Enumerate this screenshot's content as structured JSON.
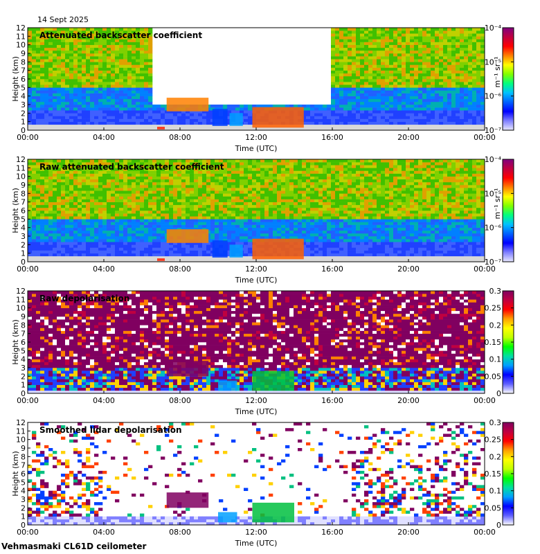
{
  "date": "14 Sept 2025",
  "footer": "Vehmasmaki CL61D ceilometer",
  "chart_data": [
    {
      "type": "heatmap",
      "title": "Attenuated backscatter coefficient",
      "xlabel": "Time (UTC)",
      "ylabel": "Height (km)",
      "xticks": [
        "00:00",
        "04:00",
        "08:00",
        "12:00",
        "16:00",
        "20:00",
        "00:00"
      ],
      "yticks": [
        "0",
        "1",
        "2",
        "3",
        "4",
        "5",
        "6",
        "7",
        "8",
        "9",
        "10",
        "11",
        "12"
      ],
      "ylim": [
        0,
        12
      ],
      "colorbar": {
        "scale": "log",
        "ticks": [
          "10⁻⁷",
          "10⁻⁶",
          "10⁻⁵",
          "10⁻⁴"
        ],
        "label": "m⁻¹ sr⁻¹"
      },
      "style": "atten"
    },
    {
      "type": "heatmap",
      "title": "Raw attenuated backscatter coefficient",
      "xlabel": "Time (UTC)",
      "ylabel": "Height (km)",
      "xticks": [
        "00:00",
        "04:00",
        "08:00",
        "12:00",
        "16:00",
        "20:00",
        "00:00"
      ],
      "yticks": [
        "0",
        "1",
        "2",
        "3",
        "4",
        "5",
        "6",
        "7",
        "8",
        "9",
        "10",
        "11",
        "12"
      ],
      "ylim": [
        0,
        12
      ],
      "colorbar": {
        "scale": "log",
        "ticks": [
          "10⁻⁷",
          "10⁻⁶",
          "10⁻⁵",
          "10⁻⁴"
        ],
        "label": "m⁻¹ sr⁻¹"
      },
      "style": "raw"
    },
    {
      "type": "heatmap",
      "title": "Raw depolarisation",
      "xlabel": "Time (UTC)",
      "ylabel": "Height (km)",
      "xticks": [
        "00:00",
        "04:00",
        "08:00",
        "12:00",
        "16:00",
        "20:00",
        "00:00"
      ],
      "yticks": [
        "0",
        "1",
        "2",
        "3",
        "4",
        "5",
        "6",
        "7",
        "8",
        "9",
        "10",
        "11",
        "12"
      ],
      "ylim": [
        0,
        12
      ],
      "colorbar": {
        "scale": "linear",
        "ticks": [
          "0",
          "0.05",
          "0.1",
          "0.15",
          "0.2",
          "0.25",
          "0.3"
        ],
        "label": ""
      },
      "style": "depol"
    },
    {
      "type": "heatmap",
      "title": "Smoothed lidar depolarisation",
      "xlabel": "Time (UTC)",
      "ylabel": "Height (km)",
      "xticks": [
        "00:00",
        "04:00",
        "08:00",
        "12:00",
        "16:00",
        "20:00",
        "00:00"
      ],
      "yticks": [
        "0",
        "1",
        "2",
        "3",
        "4",
        "5",
        "6",
        "7",
        "8",
        "9",
        "10",
        "11",
        "12"
      ],
      "ylim": [
        0,
        12
      ],
      "colorbar": {
        "scale": "linear",
        "ticks": [
          "0",
          "0.05",
          "0.1",
          "0.15",
          "0.2",
          "0.25",
          "0.3"
        ],
        "label": ""
      },
      "style": "smooth"
    }
  ]
}
